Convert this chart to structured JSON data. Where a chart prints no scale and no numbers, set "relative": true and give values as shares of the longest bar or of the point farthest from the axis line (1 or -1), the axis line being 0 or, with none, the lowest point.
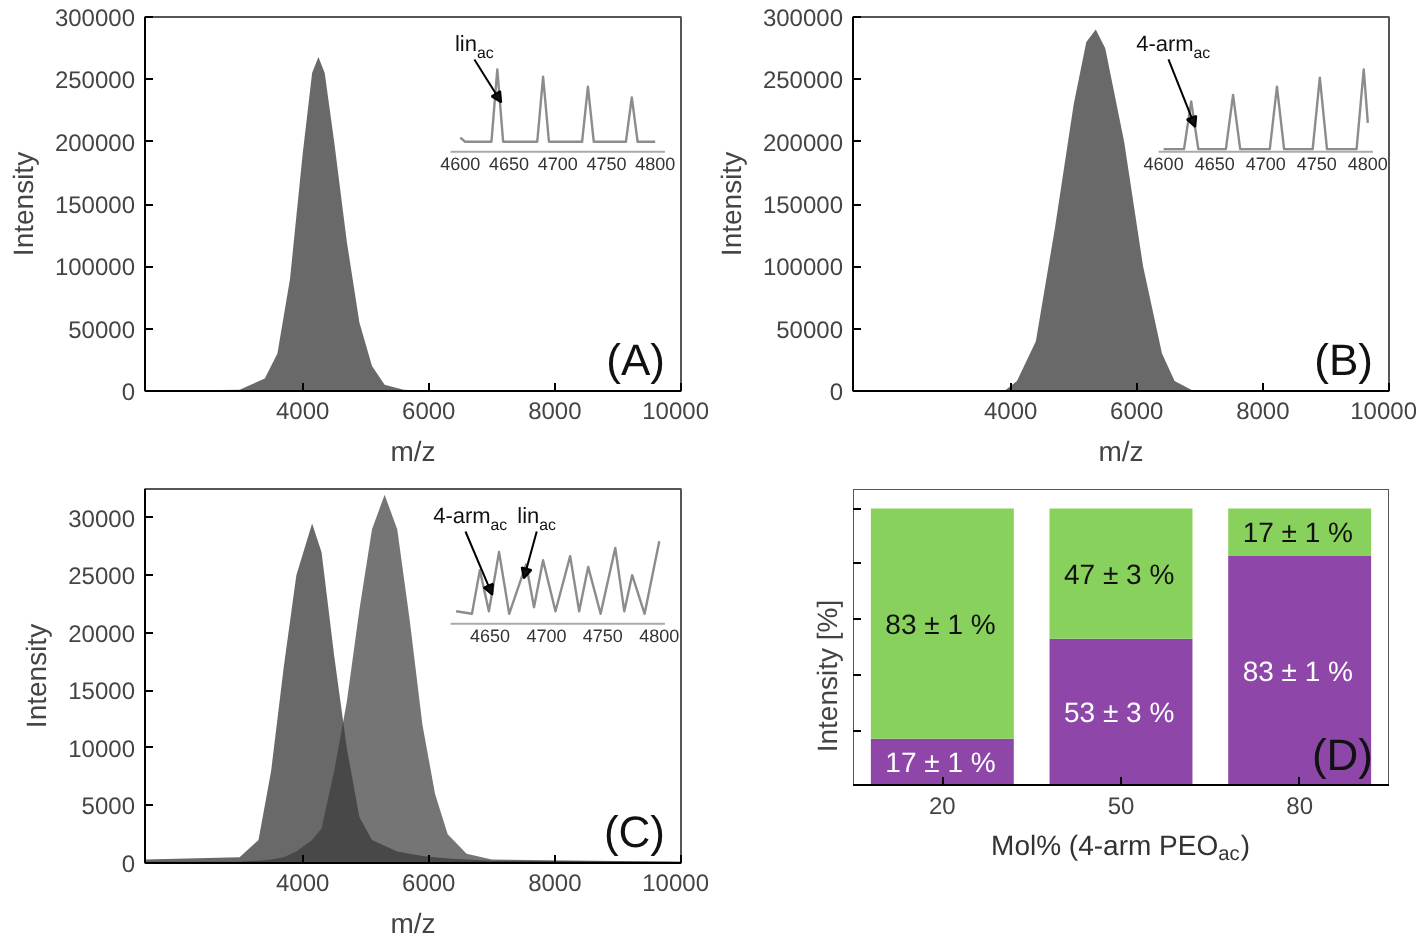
{
  "chart_data": [
    {
      "type": "area",
      "xlabel": "m/z",
      "ylabel": "Intensity",
      "xlim": [
        1500,
        10000
      ],
      "xticks": [
        4000,
        6000,
        8000,
        10000
      ],
      "ylim": [
        0,
        300000
      ],
      "yticks": [
        0,
        50000,
        100000,
        150000,
        200000,
        250000,
        300000
      ],
      "annotations": [
        "(A)"
      ],
      "x": [
        1500,
        3000,
        3400,
        3600,
        3800,
        4000,
        4150,
        4250,
        4350,
        4500,
        4700,
        4900,
        5100,
        5300,
        5600,
        6000,
        10000
      ],
      "series": [
        {
          "color": "#2a2a2a",
          "values": [
            0,
            1000,
            10000,
            30000,
            90000,
            190000,
            255000,
            268000,
            255000,
            200000,
            120000,
            55000,
            20000,
            5000,
            1000,
            0,
            0
          ]
        }
      ]
    },
    {
      "type": "line",
      "relative": true,
      "xlim": [
        4590,
        4810
      ],
      "xticks": [
        4600,
        4650,
        4700,
        4750,
        4800
      ],
      "annotations": [
        {
          "text": "lin$_{ac}$",
          "x": 4642,
          "y": 0.6
        }
      ],
      "x": [
        4600,
        4605,
        4632,
        4638,
        4644,
        4679,
        4685,
        4691,
        4725,
        4731,
        4737,
        4770,
        4776,
        4782,
        4800
      ],
      "series": [
        {
          "color": "#8c8c8c",
          "values": [
            0.17,
            0.12,
            0.12,
            1.0,
            0.12,
            0.12,
            0.91,
            0.12,
            0.12,
            0.79,
            0.12,
            0.12,
            0.66,
            0.12,
            0.12
          ]
        }
      ]
    },
    {
      "type": "area",
      "xlabel": "m/z",
      "ylabel": "Intensity",
      "xlim": [
        1500,
        10000
      ],
      "xticks": [
        4000,
        6000,
        8000,
        10000
      ],
      "ylim": [
        0,
        300000
      ],
      "yticks": [
        0,
        50000,
        100000,
        150000,
        200000,
        250000,
        300000
      ],
      "annotations": [
        "(B)"
      ],
      "x": [
        1500,
        3900,
        4100,
        4400,
        4700,
        5000,
        5200,
        5350,
        5500,
        5800,
        6100,
        6400,
        6600,
        6900,
        10000
      ],
      "series": [
        {
          "color": "#2a2a2a",
          "values": [
            0,
            0,
            8000,
            40000,
            130000,
            230000,
            280000,
            290000,
            275000,
            200000,
            100000,
            30000,
            8000,
            0,
            0
          ]
        }
      ]
    },
    {
      "type": "line",
      "relative": true,
      "xlim": [
        4595,
        4805
      ],
      "xticks": [
        4600,
        4650,
        4700,
        4750,
        4800
      ],
      "annotations": [
        {
          "text": "4-arm$_{ac}$",
          "x": 4631,
          "y": 0.3
        }
      ],
      "x": [
        4600,
        4620,
        4627,
        4634,
        4661,
        4668,
        4675,
        4704,
        4711,
        4718,
        4746,
        4753,
        4760,
        4789,
        4796,
        4800
      ],
      "series": [
        {
          "color": "#8c8c8c",
          "values": [
            0.03,
            0.03,
            0.61,
            0.03,
            0.03,
            0.69,
            0.03,
            0.03,
            0.79,
            0.03,
            0.03,
            0.9,
            0.03,
            0.03,
            1.0,
            0.35
          ]
        }
      ]
    },
    {
      "type": "area",
      "xlabel": "m/z",
      "ylabel": "Intensity",
      "xlim": [
        1500,
        10000
      ],
      "xticks": [
        4000,
        6000,
        8000,
        10000
      ],
      "ylim": [
        0,
        32500
      ],
      "yticks": [
        0,
        5000,
        10000,
        15000,
        20000,
        25000,
        30000
      ],
      "annotations": [
        "(C)"
      ],
      "series": [
        {
          "color": "#2a2a2a",
          "values": [
            300,
            500,
            2000,
            8000,
            17000,
            25000,
            29500,
            27000,
            18000,
            10000,
            4000,
            2000,
            1500,
            1000,
            800,
            600,
            500,
            400,
            300,
            200,
            100
          ]
        },
        {
          "color": "#3a3a3a",
          "values": [
            100,
            100,
            200,
            300,
            500,
            1000,
            2000,
            3000,
            8000,
            14000,
            22000,
            29000,
            32000,
            29000,
            21000,
            12000,
            6000,
            2500,
            800,
            300,
            100
          ]
        }
      ],
      "x": [
        1500,
        3000,
        3300,
        3500,
        3700,
        3900,
        4150,
        4300,
        4500,
        4700,
        4900,
        5100,
        5300,
        5500,
        5700,
        5900,
        6100,
        6300,
        6600,
        7000,
        10000
      ]
    },
    {
      "type": "line",
      "relative": true,
      "xlim": [
        4615,
        4805
      ],
      "xticks": [
        4650,
        4700,
        4750,
        4800
      ],
      "annotations": [
        {
          "text": "4-arm$_{ac}$",
          "x": 4652,
          "y": 0.35
        },
        {
          "text": "lin$_{ac}$",
          "x": 4680,
          "y": 0.55
        }
      ],
      "x": [
        4620,
        4634,
        4641,
        4649,
        4658,
        4667,
        4682,
        4689,
        4697,
        4708,
        4721,
        4729,
        4737,
        4748,
        4761,
        4769,
        4776,
        4787,
        4800
      ],
      "series": [
        {
          "color": "#8c8c8c",
          "values": [
            0.15,
            0.12,
            0.65,
            0.15,
            0.87,
            0.12,
            0.72,
            0.2,
            0.77,
            0.15,
            0.82,
            0.15,
            0.69,
            0.12,
            0.92,
            0.15,
            0.59,
            0.12,
            1.0
          ]
        }
      ]
    },
    {
      "type": "bar",
      "stacked": true,
      "xlabel": "Mol% (4-arm PEO$_{ac}$)",
      "ylabel": "Intensity [%]",
      "tick_labels": "x",
      "annotations": [
        "(D)"
      ],
      "categories": [
        "20",
        "50",
        "80"
      ],
      "ylim": [
        0,
        107
      ],
      "yticks": [
        {
          "value": 0,
          "label": null
        },
        {
          "value": 20,
          "label": null
        },
        {
          "value": 40,
          "label": null
        },
        {
          "value": 60,
          "label": null
        },
        {
          "value": 80,
          "label": null
        },
        {
          "value": 100,
          "label": null
        }
      ],
      "series": [
        {
          "color": "#8e47a8",
          "values": [
            17,
            53,
            83
          ],
          "value_labels": [
            "17 ± 1 %",
            "53 ± 3 %",
            "83 ± 1 %"
          ]
        },
        {
          "color": "#88d15c",
          "values": [
            83,
            47,
            17
          ],
          "value_labels": [
            "83 ± 1 %",
            "47 ± 3 %",
            "17 ± 1 %"
          ]
        }
      ]
    }
  ]
}
